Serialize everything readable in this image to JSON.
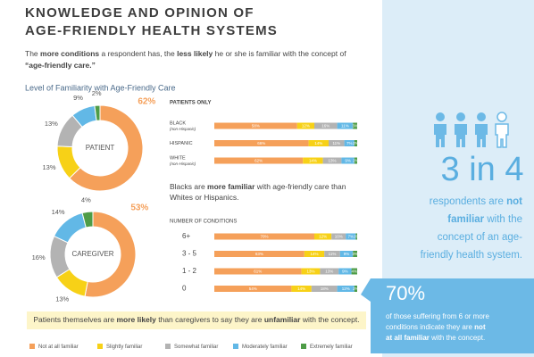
{
  "header": {
    "title": [
      "KNOWLEDGE AND OPINION OF",
      "AGE-FRIENDLY HEALTH SYSTEMS"
    ],
    "intro": [
      [
        {
          "text": "The "
        },
        {
          "text": "more conditions",
          "bold": true
        },
        {
          "text": " a respondent has, the "
        },
        {
          "text": "less likely",
          "bold": true
        },
        {
          "text": " he or she is familiar with the concept of"
        }
      ],
      [
        {
          "text": "“age-friendly care.”",
          "bold": true
        }
      ]
    ]
  },
  "section_title": "Level of Familiarity with Age-Friendly Care",
  "chart_data": [
    {
      "type": "donut",
      "title": "PATIENT",
      "categories": [
        "Not at all familiar",
        "Slightly familiar",
        "Somewhat familiar",
        "Moderately familiar",
        "Extremely familiar"
      ],
      "values": [
        62,
        13,
        13,
        9,
        2
      ],
      "value_labels": [
        "62%",
        "13%",
        "13%",
        "9%",
        "2%"
      ],
      "colors": [
        "#f5a05a",
        "#f7d117",
        "#b3b3b3",
        "#62b8e6",
        "#4e9c47"
      ]
    },
    {
      "type": "donut",
      "title": "CAREGIVER",
      "categories": [
        "Not at all familiar",
        "Slightly familiar",
        "Somewhat familiar",
        "Moderately familiar",
        "Extremely familiar"
      ],
      "values": [
        53,
        13,
        16,
        14,
        4
      ],
      "value_labels": [
        "53%",
        "13%",
        "16%",
        "14%",
        "4%"
      ],
      "colors": [
        "#f5a05a",
        "#f7d117",
        "#b3b3b3",
        "#62b8e6",
        "#4e9c47"
      ]
    },
    {
      "type": "stacked-bar",
      "title": "PATIENTS ONLY",
      "categories": [
        "BLACK",
        "HISPANIC",
        "WHITE"
      ],
      "category_notes": [
        "(non-Hispanic)",
        null,
        "(non-Hispanic)"
      ],
      "xlim": [
        0,
        100
      ],
      "series": [
        {
          "name": "Not at all familiar",
          "color": "#f5a05a",
          "values": [
            58,
            66,
            62
          ],
          "value_labels": [
            "58%",
            "66%",
            "62%"
          ]
        },
        {
          "name": "Slightly familiar",
          "color": "#f7d117",
          "values": [
            12,
            14,
            14
          ],
          "value_labels": [
            "12%",
            "14%",
            "14%"
          ]
        },
        {
          "name": "Somewhat familiar",
          "color": "#b3b3b3",
          "values": [
            16,
            11,
            13
          ],
          "value_labels": [
            "16%",
            "11%",
            "13%"
          ]
        },
        {
          "name": "Moderately familiar",
          "color": "#62b8e6",
          "values": [
            11,
            7,
            9
          ],
          "value_labels": [
            "11%",
            "7%",
            "9%"
          ]
        },
        {
          "name": "Extremely familiar",
          "color": "#4e9c47",
          "values": [
            3,
            2,
            2
          ],
          "value_labels": [
            "3%",
            "2%",
            "2%"
          ]
        }
      ]
    },
    {
      "type": "stacked-bar",
      "title": "NUMBER OF CONDITIONS",
      "categories": [
        "6+",
        "3 - 5",
        "1 - 2",
        "0"
      ],
      "xlim": [
        0,
        100
      ],
      "series": [
        {
          "name": "Not at all familiar",
          "color": "#f5a05a",
          "values": [
            70,
            63,
            61,
            54
          ],
          "value_labels": [
            "70%",
            "63%",
            "61%",
            "54%"
          ]
        },
        {
          "name": "Slightly familiar",
          "color": "#f7d117",
          "values": [
            12,
            14,
            13,
            14
          ],
          "value_labels": [
            "12%",
            "14%",
            "13%",
            "14%"
          ]
        },
        {
          "name": "Somewhat familiar",
          "color": "#b3b3b3",
          "values": [
            10,
            11,
            13,
            18
          ],
          "value_labels": [
            "10%",
            "11%",
            "13%",
            "18%"
          ]
        },
        {
          "name": "Moderately familiar",
          "color": "#62b8e6",
          "values": [
            7,
            9,
            9,
            12
          ],
          "value_labels": [
            "7%",
            "9%",
            "9%",
            "12%"
          ]
        },
        {
          "name": "Extremely familiar",
          "color": "#4e9c47",
          "values": [
            1,
            3,
            4,
            2
          ],
          "value_labels": [
            "1%",
            "3%",
            "4%",
            "2%"
          ]
        }
      ]
    }
  ],
  "comparison_note": [
    [
      {
        "text": "Blacks are "
      },
      {
        "text": "more familiar",
        "bold": true
      },
      {
        "text": " with age-friendly care than"
      }
    ],
    [
      {
        "text": "Whites or Hispanics."
      }
    ]
  ],
  "note": [
    [
      {
        "text": "Patients themselves are "
      },
      {
        "text": "more likely",
        "bold": true
      },
      {
        "text": " than caregivers to say they are "
      },
      {
        "text": "unfamiliar",
        "bold": true
      },
      {
        "text": " with the concept."
      }
    ]
  ],
  "sidebar": {
    "stat": "3 in 4",
    "text": [
      [
        {
          "text": "respondents are "
        },
        {
          "text": "not",
          "bold": true
        }
      ],
      [
        {
          "text": "familiar",
          "bold": true
        },
        {
          "text": " with the"
        }
      ],
      [
        {
          "text": "concept of an age-"
        }
      ],
      [
        {
          "text": "friendly health system."
        }
      ]
    ],
    "callout": {
      "stat": "70%",
      "text": [
        [
          {
            "text": "of those suffering from 6 or more"
          }
        ],
        [
          {
            "text": "conditions indicate they are "
          },
          {
            "text": "not",
            "bold": true
          }
        ],
        [
          {
            "text": "at all familiar",
            "bold": true
          },
          {
            "text": " with the concept."
          }
        ]
      ]
    }
  }
}
